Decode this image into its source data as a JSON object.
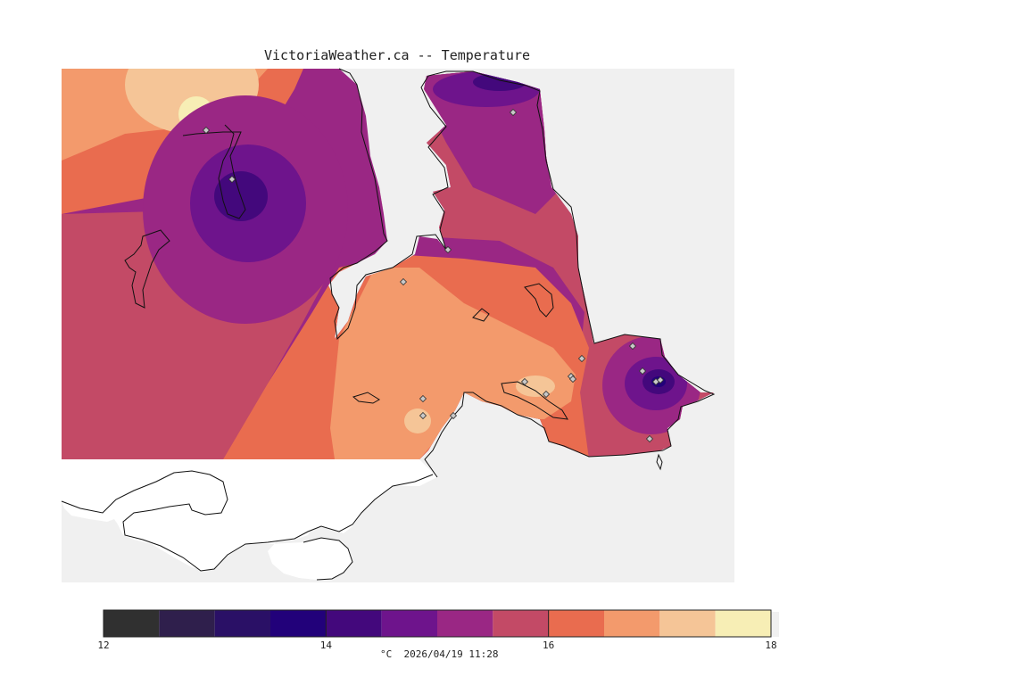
{
  "title": "VictoriaWeather.ca -- Temperature",
  "colors": {
    "water": "#f0f0f0",
    "land_outside": "#ffffff",
    "coast": "#111111",
    "station_fill": "#c8c8c8"
  },
  "colorbar": {
    "min": 12,
    "max": 18,
    "step": 0.5,
    "colors": [
      "#303030",
      "#2f1f4c",
      "#2a1066",
      "#22017a",
      "#43087c",
      "#6e148c",
      "#9a2784",
      "#c34a66",
      "#e96c4f",
      "#f39a6c",
      "#f5c597",
      "#f7eeb5"
    ],
    "ticks": [
      {
        "value": 12,
        "label": "12"
      },
      {
        "value": 14,
        "label": "14"
      },
      {
        "value": 16,
        "label": "16"
      },
      {
        "value": 18,
        "label": "18"
      }
    ]
  },
  "footer": {
    "units": "°C",
    "timestamp": "2026/04/19 11:28"
  },
  "stations_count_note": ""
}
